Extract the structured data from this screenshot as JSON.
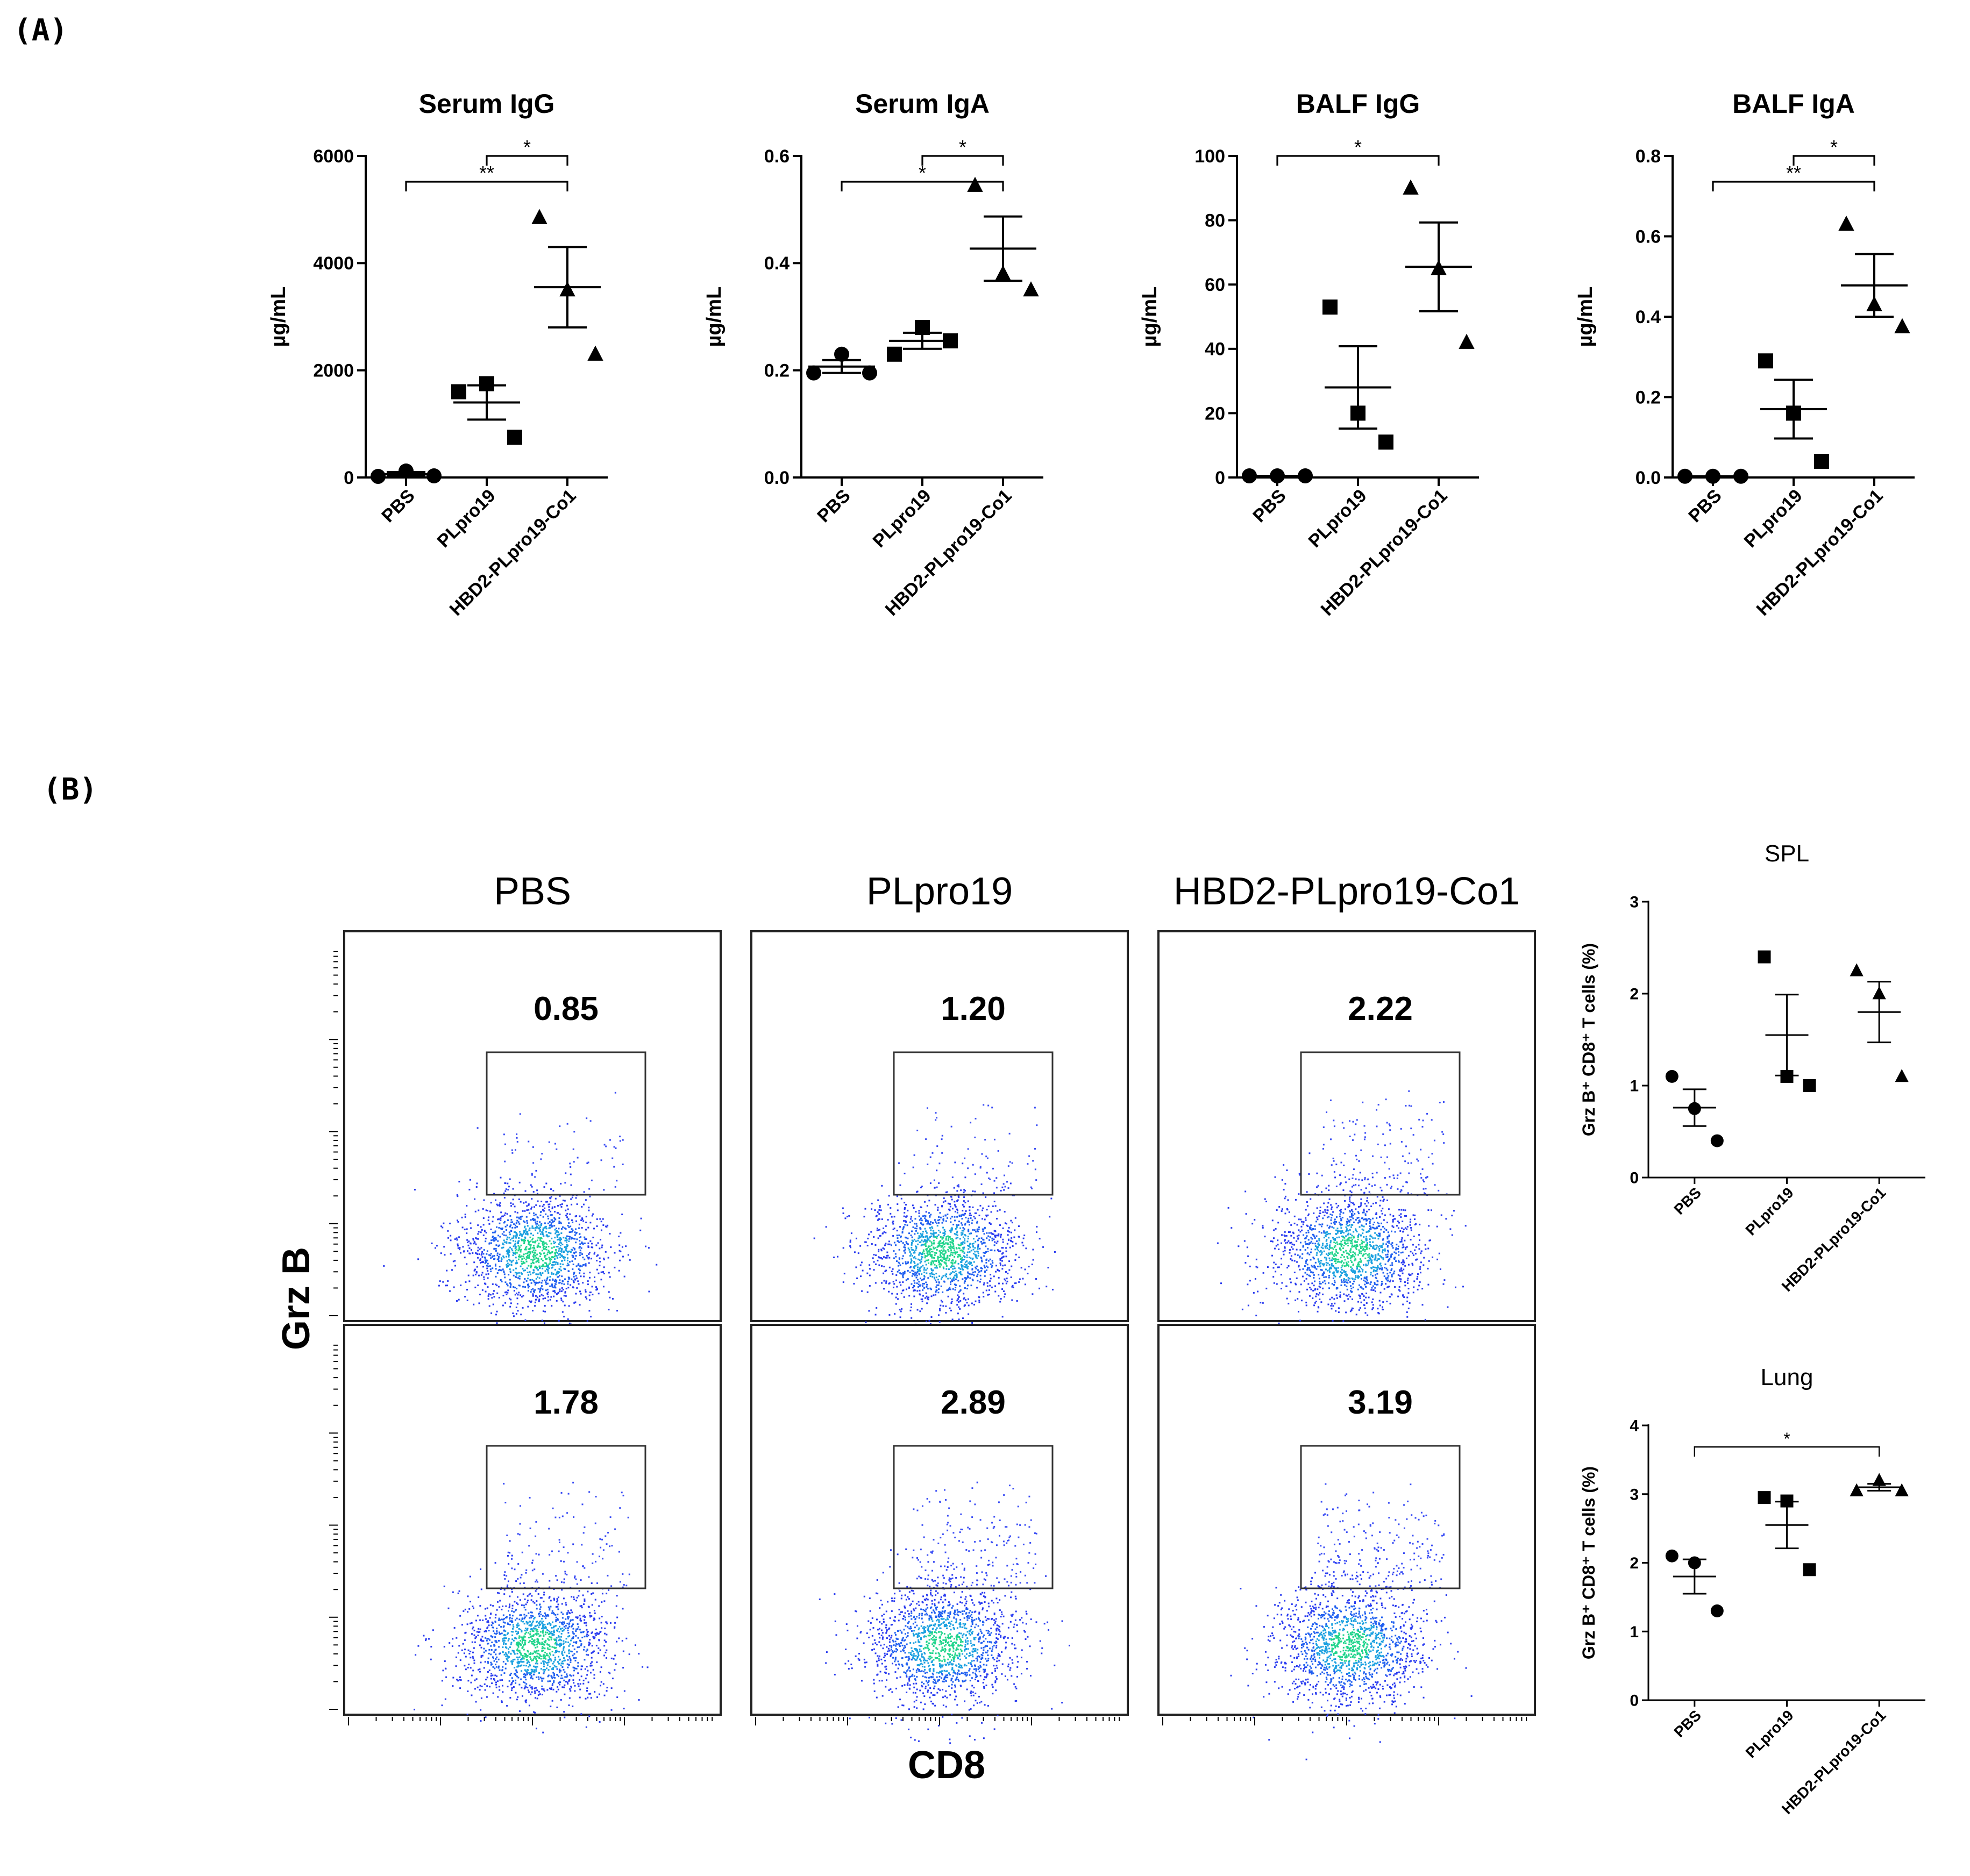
{
  "panel_labels": {
    "a": "(A)",
    "b": "(B)"
  },
  "charts_a": [
    {
      "type": "scatter",
      "title": "Serum IgG",
      "ylabel": "µg/mL",
      "categories": [
        "PBS",
        "PLpro19",
        "HBD2-PLpro19-Co1"
      ],
      "ylim": [
        0,
        6000
      ],
      "yticks": [
        0,
        2000,
        4000,
        6000
      ],
      "ytick_labels": [
        "0",
        "2000",
        "4000",
        "6000"
      ],
      "series": [
        {
          "values": [
            20,
            120,
            30
          ],
          "mean": 60,
          "sem": 40,
          "marker": "circle"
        },
        {
          "values": [
            1600,
            1750,
            750
          ],
          "mean": 1400,
          "sem": 320,
          "marker": "square"
        },
        {
          "values": [
            4850,
            3500,
            2300
          ],
          "mean": 3550,
          "sem": 750,
          "marker": "triangle"
        }
      ],
      "significance": [
        {
          "from": 1,
          "to": 2,
          "label": "*",
          "level": 1
        },
        {
          "from": 0,
          "to": 2,
          "label": "**",
          "level": 0
        }
      ]
    },
    {
      "type": "scatter",
      "title": "Serum IgA",
      "ylabel": "µg/mL",
      "categories": [
        "PBS",
        "PLpro19",
        "HBD2-PLpro19-Co1"
      ],
      "ylim": [
        0,
        0.6
      ],
      "yticks": [
        0,
        0.2,
        0.4,
        0.6
      ],
      "ytick_labels": [
        "0.0",
        "0.2",
        "0.4",
        "0.6"
      ],
      "series": [
        {
          "values": [
            0.195,
            0.23,
            0.195
          ],
          "mean": 0.207,
          "sem": 0.012,
          "marker": "circle"
        },
        {
          "values": [
            0.23,
            0.28,
            0.255
          ],
          "mean": 0.255,
          "sem": 0.015,
          "marker": "square"
        },
        {
          "values": [
            0.545,
            0.38,
            0.35
          ],
          "mean": 0.427,
          "sem": 0.06,
          "marker": "triangle"
        }
      ],
      "significance": [
        {
          "from": 1,
          "to": 2,
          "label": "*",
          "level": 1
        },
        {
          "from": 0,
          "to": 2,
          "label": "*",
          "level": 0
        }
      ]
    },
    {
      "type": "scatter",
      "title": "BALF IgG",
      "ylabel": "µg/mL",
      "categories": [
        "PBS",
        "PLpro19",
        "HBD2-PLpro19-Co1"
      ],
      "ylim": [
        0,
        100
      ],
      "yticks": [
        0,
        20,
        40,
        60,
        80,
        100
      ],
      "ytick_labels": [
        "0",
        "20",
        "40",
        "60",
        "80",
        "100"
      ],
      "series": [
        {
          "values": [
            0.5,
            0.5,
            0.5
          ],
          "mean": 0.5,
          "sem": 0,
          "marker": "circle"
        },
        {
          "values": [
            53,
            20,
            11
          ],
          "mean": 28,
          "sem": 12.8,
          "marker": "square"
        },
        {
          "values": [
            90,
            65,
            42
          ],
          "mean": 65.5,
          "sem": 13.8,
          "marker": "triangle"
        }
      ],
      "significance": [
        {
          "from": 0,
          "to": 2,
          "label": "*",
          "level": 1
        }
      ]
    },
    {
      "type": "scatter",
      "title": "BALF IgA",
      "ylabel": "µg/mL",
      "categories": [
        "PBS",
        "PLpro19",
        "HBD2-PLpro19-Co1"
      ],
      "ylim": [
        0,
        0.8
      ],
      "yticks": [
        0,
        0.2,
        0.4,
        0.6,
        0.8
      ],
      "ytick_labels": [
        "0.0",
        "0.2",
        "0.4",
        "0.6",
        "0.8"
      ],
      "series": [
        {
          "values": [
            0.003,
            0.003,
            0.003
          ],
          "mean": 0.003,
          "sem": 0,
          "marker": "circle"
        },
        {
          "values": [
            0.29,
            0.16,
            0.04
          ],
          "mean": 0.17,
          "sem": 0.073,
          "marker": "square"
        },
        {
          "values": [
            0.63,
            0.43,
            0.375
          ],
          "mean": 0.478,
          "sem": 0.078,
          "marker": "triangle"
        }
      ],
      "significance": [
        {
          "from": 1,
          "to": 2,
          "label": "*",
          "level": 1
        },
        {
          "from": 0,
          "to": 2,
          "label": "**",
          "level": 0
        }
      ]
    }
  ],
  "flow": {
    "column_titles": [
      "PBS",
      "PLpro19",
      "HBD2-PLpro19-Co1"
    ],
    "ylabel": "Grz B",
    "xlabel": "CD8",
    "rows": [
      [
        "0.85",
        "1.20",
        "2.22"
      ],
      [
        "1.78",
        "2.89",
        "3.19"
      ]
    ]
  },
  "charts_b": [
    {
      "type": "scatter",
      "title": "SPL",
      "ylabel": "Grz B⁺ CD8⁺ T cells (%)",
      "categories": [
        "PBS",
        "PLpro19",
        "HBD2-PLpro19-Co1"
      ],
      "ylim": [
        0,
        3
      ],
      "yticks": [
        0,
        1,
        2,
        3
      ],
      "ytick_labels": [
        "0",
        "1",
        "2",
        "3"
      ],
      "series": [
        {
          "values": [
            1.1,
            0.75,
            0.4
          ],
          "mean": 0.76,
          "sem": 0.2,
          "marker": "circle"
        },
        {
          "values": [
            2.4,
            1.1,
            1.0
          ],
          "mean": 1.55,
          "sem": 0.44,
          "marker": "square"
        },
        {
          "values": [
            2.25,
            2.0,
            1.1
          ],
          "mean": 1.8,
          "sem": 0.33,
          "marker": "triangle"
        }
      ],
      "significance": []
    },
    {
      "type": "scatter",
      "title": "Lung",
      "ylabel": "Grz B⁺ CD8⁺ T cells (%)",
      "categories": [
        "PBS",
        "PLpro19",
        "HBD2-PLpro19-Co1"
      ],
      "ylim": [
        0,
        4
      ],
      "yticks": [
        0,
        1,
        2,
        3,
        4
      ],
      "ytick_labels": [
        "0",
        "1",
        "2",
        "3",
        "4"
      ],
      "series": [
        {
          "values": [
            2.1,
            2.0,
            1.3
          ],
          "mean": 1.8,
          "sem": 0.25,
          "marker": "circle"
        },
        {
          "values": [
            2.95,
            2.9,
            1.9
          ],
          "mean": 2.55,
          "sem": 0.34,
          "marker": "square"
        },
        {
          "values": [
            3.05,
            3.2,
            3.05
          ],
          "mean": 3.1,
          "sem": 0.05,
          "marker": "triangle"
        }
      ],
      "significance": [
        {
          "from": 0,
          "to": 2,
          "label": "*",
          "level": 1
        }
      ]
    }
  ]
}
